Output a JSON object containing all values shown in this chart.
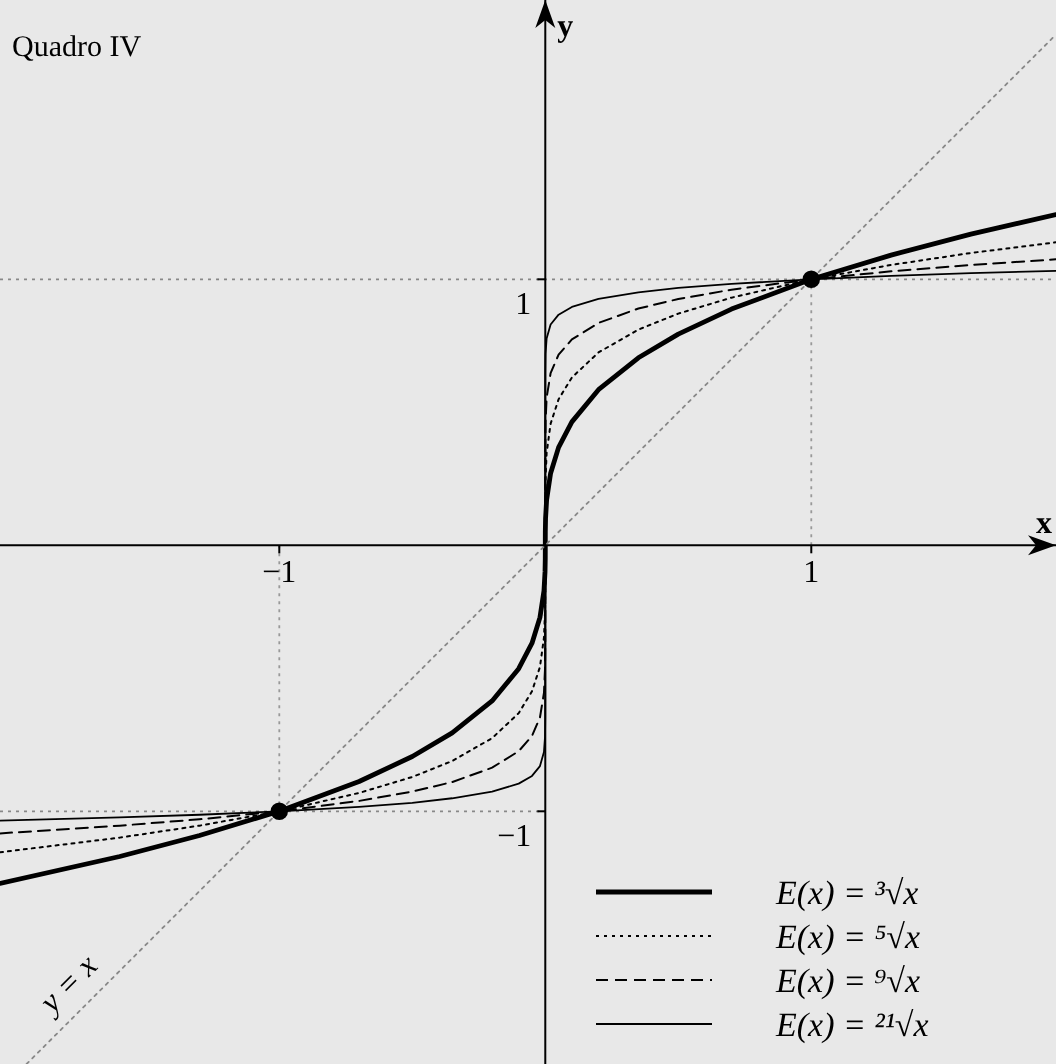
{
  "chart_data": {
    "type": "line",
    "title": "Quadro IV",
    "xlabel": "x",
    "ylabel": "y",
    "xlim": [
      -2.05,
      1.92
    ],
    "ylim": [
      -1.95,
      2.05
    ],
    "xticks": [
      {
        "value": -1,
        "label": "−1"
      },
      1
    ],
    "yticks": [
      {
        "value": -1,
        "label": "−1"
      },
      1
    ],
    "grid": false,
    "legend": "bottom right",
    "x": [
      -2.05,
      -1.6,
      -1.3,
      -1,
      -0.7,
      -0.5,
      -0.35,
      -0.2,
      -0.1,
      -0.05,
      -0.02,
      -0.005,
      -0.001,
      -0.0001,
      -1e-05,
      0,
      1e-05,
      0.0001,
      0.001,
      0.005,
      0.02,
      0.05,
      0.1,
      0.2,
      0.35,
      0.5,
      0.7,
      1,
      1.3,
      1.6,
      1.92
    ],
    "series": [
      {
        "name": "E(x) = ³√x",
        "color": "#000000",
        "line_style": "solid",
        "values": [
          -1.271,
          -1.17,
          -1.091,
          -1,
          -0.888,
          -0.794,
          -0.705,
          -0.585,
          -0.464,
          -0.368,
          -0.271,
          -0.171,
          -0.1,
          -0.05,
          -0.02,
          0,
          0.02,
          0.05,
          0.1,
          0.171,
          0.271,
          0.368,
          0.464,
          0.585,
          0.705,
          0.794,
          0.888,
          1,
          1.091,
          1.17,
          1.243
        ]
      },
      {
        "name": "E(x) = ⁵√x",
        "color": "#000000",
        "line_style": "dotted",
        "values": [
          -1.154,
          -1.099,
          -1.054,
          -1,
          -0.931,
          -0.871,
          -0.811,
          -0.725,
          -0.631,
          -0.549,
          -0.457,
          -0.347,
          -0.251,
          -0.158,
          -0.1,
          0,
          0.1,
          0.158,
          0.251,
          0.347,
          0.457,
          0.549,
          0.631,
          0.725,
          0.811,
          0.871,
          0.931,
          1,
          1.054,
          1.099,
          1.139
        ]
      },
      {
        "name": "E(x) = ⁹√x",
        "color": "#000000",
        "line_style": "dashed",
        "values": [
          -1.083,
          -1.054,
          -1.03,
          -1,
          -0.961,
          -0.926,
          -0.89,
          -0.836,
          -0.774,
          -0.717,
          -0.647,
          -0.555,
          -0.464,
          -0.359,
          -0.278,
          0,
          0.278,
          0.359,
          0.464,
          0.555,
          0.647,
          0.717,
          0.774,
          0.836,
          0.89,
          0.926,
          0.961,
          1,
          1.03,
          1.054,
          1.075
        ]
      },
      {
        "name": "E(x) = ²¹√x",
        "color": "#000000",
        "line_style": "solid",
        "values": [
          -1.035,
          -1.023,
          -1.013,
          -1,
          -0.983,
          -0.968,
          -0.951,
          -0.926,
          -0.896,
          -0.867,
          -0.83,
          -0.777,
          -0.72,
          -0.645,
          -0.578,
          0,
          0.578,
          0.645,
          0.72,
          0.777,
          0.83,
          0.867,
          0.896,
          0.926,
          0.951,
          0.968,
          0.983,
          1,
          1.013,
          1.023,
          1.032
        ]
      },
      {
        "color": "#888888",
        "line_style": "dotted",
        "x": [
          -1.95,
          1.92
        ],
        "values": [
          -1.95,
          1.92
        ]
      },
      {
        "type": "scatter",
        "marker": "circle",
        "color": "#000000",
        "x": [
          -1,
          1
        ],
        "values": [
          -1,
          1
        ]
      }
    ],
    "ref_lines": [
      {
        "axis": "y",
        "value": 1,
        "line_style": "dotted",
        "color": "#888888"
      },
      {
        "axis": "y",
        "value": -1,
        "line_style": "dotted",
        "color": "#888888"
      },
      {
        "axis": "x",
        "value": 1,
        "line_style": "dotted",
        "color": "#999999"
      },
      {
        "axis": "x",
        "value": -1,
        "line_style": "dotted",
        "color": "#999999"
      }
    ],
    "annotations": [
      {
        "text": "y = x",
        "x": -1.72,
        "y": -1.72
      }
    ]
  }
}
